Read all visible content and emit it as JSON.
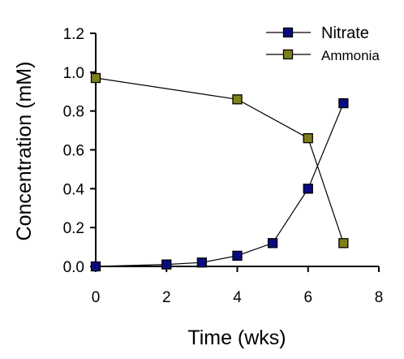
{
  "chart_data": {
    "type": "line",
    "xlabel": "Time (wks)",
    "ylabel": "Concentration (mM)",
    "xlim": [
      0,
      8
    ],
    "ylim": [
      0,
      1.2
    ],
    "x_ticks": [
      "0",
      "2",
      "4",
      "6",
      "8"
    ],
    "y_ticks": [
      "0.0",
      "0.2",
      "0.4",
      "0.6",
      "0.8",
      "1.0",
      "1.2"
    ],
    "grid": false,
    "legend_position": "top-right",
    "series": [
      {
        "name": "Nitrate",
        "color": "#0a0a80",
        "marker": "square",
        "x": [
          0,
          2,
          3,
          4,
          5,
          6,
          7
        ],
        "y": [
          0.0,
          0.01,
          0.02,
          0.055,
          0.12,
          0.4,
          0.84
        ]
      },
      {
        "name": "Ammonia",
        "color": "#808018",
        "marker": "square",
        "x": [
          0,
          4,
          6,
          7
        ],
        "y": [
          0.97,
          0.86,
          0.66,
          0.12
        ]
      }
    ]
  }
}
